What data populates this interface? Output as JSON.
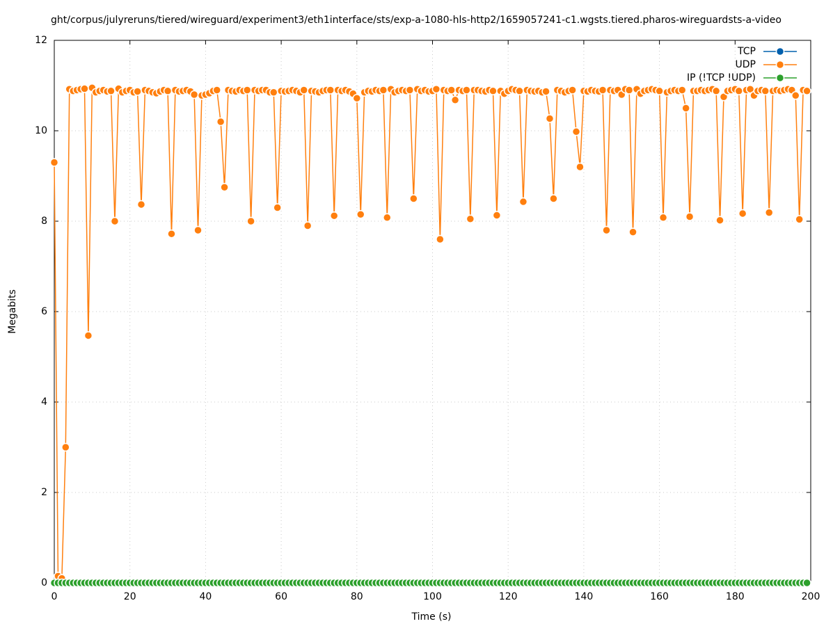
{
  "chart_data": {
    "type": "line",
    "title": "ght/corpus/julyreruns/tiered/wireguard/experiment3/eth1interface/sts/exp-a-1080-hls-http2/1659057241-c1.wgsts.tiered.pharos-wireguardsts-a-video",
    "x_label": "Time (s)",
    "y_label": "Megabits",
    "xlim": [
      0,
      200
    ],
    "ylim": [
      0,
      12
    ],
    "xticks": [
      0,
      20,
      40,
      60,
      80,
      100,
      120,
      140,
      160,
      180,
      200
    ],
    "yticks": [
      0,
      2,
      4,
      6,
      8,
      10,
      12
    ],
    "grid": true,
    "legend": "top-right",
    "x": [
      0,
      1,
      2,
      3,
      4,
      5,
      6,
      7,
      8,
      9,
      10,
      11,
      12,
      13,
      14,
      15,
      16,
      17,
      18,
      19,
      20,
      21,
      22,
      23,
      24,
      25,
      26,
      27,
      28,
      29,
      30,
      31,
      32,
      33,
      34,
      35,
      36,
      37,
      38,
      39,
      40,
      41,
      42,
      43,
      44,
      45,
      46,
      47,
      48,
      49,
      50,
      51,
      52,
      53,
      54,
      55,
      56,
      57,
      58,
      59,
      60,
      61,
      62,
      63,
      64,
      65,
      66,
      67,
      68,
      69,
      70,
      71,
      72,
      73,
      74,
      75,
      76,
      77,
      78,
      79,
      80,
      81,
      82,
      83,
      84,
      85,
      86,
      87,
      88,
      89,
      90,
      91,
      92,
      93,
      94,
      95,
      96,
      97,
      98,
      99,
      100,
      101,
      102,
      103,
      104,
      105,
      106,
      107,
      108,
      109,
      110,
      111,
      112,
      113,
      114,
      115,
      116,
      117,
      118,
      119,
      120,
      121,
      122,
      123,
      124,
      125,
      126,
      127,
      128,
      129,
      130,
      131,
      132,
      133,
      134,
      135,
      136,
      137,
      138,
      139,
      140,
      141,
      142,
      143,
      144,
      145,
      146,
      147,
      148,
      149,
      150,
      151,
      152,
      153,
      154,
      155,
      156,
      157,
      158,
      159,
      160,
      161,
      162,
      163,
      164,
      165,
      166,
      167,
      168,
      169,
      170,
      171,
      172,
      173,
      174,
      175,
      176,
      177,
      178,
      179,
      180,
      181,
      182,
      183,
      184,
      185,
      186,
      187,
      188,
      189,
      190,
      191,
      192,
      193,
      194,
      195,
      196,
      197,
      198,
      199
    ],
    "series": [
      {
        "name": "TCP",
        "color": "#0060ad",
        "values": [
          0,
          0,
          0,
          0,
          0,
          0,
          0,
          0,
          0,
          0,
          0,
          0,
          0,
          0,
          0,
          0,
          0,
          0,
          0,
          0,
          0,
          0,
          0,
          0,
          0,
          0,
          0,
          0,
          0,
          0,
          0,
          0,
          0,
          0,
          0,
          0,
          0,
          0,
          0,
          0,
          0,
          0,
          0,
          0,
          0,
          0,
          0,
          0,
          0,
          0,
          0,
          0,
          0,
          0,
          0,
          0,
          0,
          0,
          0,
          0,
          0,
          0,
          0,
          0,
          0,
          0,
          0,
          0,
          0,
          0,
          0,
          0,
          0,
          0,
          0,
          0,
          0,
          0,
          0,
          0,
          0,
          0,
          0,
          0,
          0,
          0,
          0,
          0,
          0,
          0,
          0,
          0,
          0,
          0,
          0,
          0,
          0,
          0,
          0,
          0,
          0,
          0,
          0,
          0,
          0,
          0,
          0,
          0,
          0,
          0,
          0,
          0,
          0,
          0,
          0,
          0,
          0,
          0,
          0,
          0,
          0,
          0,
          0,
          0,
          0,
          0,
          0,
          0,
          0,
          0,
          0,
          0,
          0,
          0,
          0,
          0,
          0,
          0,
          0,
          0,
          0,
          0,
          0,
          0,
          0,
          0,
          0,
          0,
          0,
          0,
          0,
          0,
          0,
          0,
          0,
          0,
          0,
          0,
          0,
          0,
          0,
          0,
          0,
          0,
          0,
          0,
          0,
          0,
          0,
          0,
          0,
          0,
          0,
          0,
          0,
          0,
          0,
          0,
          0,
          0,
          0,
          0,
          0,
          0,
          0,
          0,
          0,
          0,
          0,
          0,
          0,
          0,
          0,
          0,
          0,
          0,
          0,
          0,
          0,
          0
        ]
      },
      {
        "name": "UDP",
        "color": "#ff7f0e",
        "values": [
          9.3,
          0.15,
          0.1,
          3.0,
          10.92,
          10.88,
          10.9,
          10.92,
          10.93,
          5.47,
          10.95,
          10.85,
          10.88,
          10.9,
          10.87,
          10.88,
          8.0,
          10.93,
          10.85,
          10.88,
          10.9,
          10.85,
          10.87,
          8.37,
          10.9,
          10.88,
          10.85,
          10.83,
          10.87,
          10.9,
          10.88,
          7.72,
          10.9,
          10.87,
          10.88,
          10.9,
          10.87,
          10.8,
          7.8,
          10.78,
          10.8,
          10.83,
          10.88,
          10.9,
          10.2,
          8.75,
          10.9,
          10.88,
          10.87,
          10.9,
          10.88,
          10.9,
          8.0,
          10.9,
          10.88,
          10.9,
          10.9,
          10.85,
          10.85,
          8.3,
          10.88,
          10.87,
          10.88,
          10.9,
          10.88,
          10.85,
          10.9,
          7.9,
          10.88,
          10.87,
          10.85,
          10.88,
          10.9,
          10.9,
          8.12,
          10.9,
          10.88,
          10.9,
          10.87,
          10.82,
          10.72,
          8.15,
          10.85,
          10.88,
          10.87,
          10.9,
          10.88,
          10.9,
          8.08,
          10.92,
          10.85,
          10.88,
          10.9,
          10.88,
          10.9,
          8.5,
          10.92,
          10.88,
          10.9,
          10.87,
          10.88,
          10.92,
          7.6,
          10.9,
          10.88,
          10.9,
          10.68,
          10.9,
          10.88,
          10.9,
          8.05,
          10.9,
          10.9,
          10.88,
          10.87,
          10.9,
          10.88,
          8.13,
          10.88,
          10.82,
          10.88,
          10.92,
          10.9,
          10.88,
          8.43,
          10.9,
          10.88,
          10.87,
          10.88,
          10.85,
          10.87,
          10.27,
          8.5,
          10.9,
          10.88,
          10.85,
          10.88,
          10.9,
          9.98,
          9.2,
          10.88,
          10.87,
          10.9,
          10.88,
          10.87,
          10.9,
          7.8,
          10.9,
          10.88,
          10.9,
          10.8,
          10.92,
          10.9,
          7.76,
          10.92,
          10.82,
          10.88,
          10.9,
          10.92,
          10.9,
          10.88,
          8.08,
          10.85,
          10.88,
          10.9,
          10.88,
          10.9,
          10.5,
          8.1,
          10.88,
          10.88,
          10.9,
          10.88,
          10.9,
          10.92,
          10.88,
          8.02,
          10.75,
          10.88,
          10.9,
          10.92,
          10.88,
          8.17,
          10.9,
          10.92,
          10.78,
          10.88,
          10.9,
          10.88,
          8.19,
          10.88,
          10.9,
          10.88,
          10.9,
          10.92,
          10.9,
          10.78,
          8.04,
          10.9,
          10.88
        ]
      },
      {
        "name": "IP (!TCP !UDP)",
        "color": "#2ca02c",
        "values": [
          0,
          0,
          0,
          0,
          0,
          0,
          0,
          0,
          0,
          0,
          0,
          0,
          0,
          0,
          0,
          0,
          0,
          0,
          0,
          0,
          0,
          0,
          0,
          0,
          0,
          0,
          0,
          0,
          0,
          0,
          0,
          0,
          0,
          0,
          0,
          0,
          0,
          0,
          0,
          0,
          0,
          0,
          0,
          0,
          0,
          0,
          0,
          0,
          0,
          0,
          0,
          0,
          0,
          0,
          0,
          0,
          0,
          0,
          0,
          0,
          0,
          0,
          0,
          0,
          0,
          0,
          0,
          0,
          0,
          0,
          0,
          0,
          0,
          0,
          0,
          0,
          0,
          0,
          0,
          0,
          0,
          0,
          0,
          0,
          0,
          0,
          0,
          0,
          0,
          0,
          0,
          0,
          0,
          0,
          0,
          0,
          0,
          0,
          0,
          0,
          0,
          0,
          0,
          0,
          0,
          0,
          0,
          0,
          0,
          0,
          0,
          0,
          0,
          0,
          0,
          0,
          0,
          0,
          0,
          0,
          0,
          0,
          0,
          0,
          0,
          0,
          0,
          0,
          0,
          0,
          0,
          0,
          0,
          0,
          0,
          0,
          0,
          0,
          0,
          0,
          0,
          0,
          0,
          0,
          0,
          0,
          0,
          0,
          0,
          0,
          0,
          0,
          0,
          0,
          0,
          0,
          0,
          0,
          0,
          0,
          0,
          0,
          0,
          0,
          0,
          0,
          0,
          0,
          0,
          0,
          0,
          0,
          0,
          0,
          0,
          0,
          0,
          0,
          0,
          0,
          0,
          0,
          0,
          0,
          0,
          0,
          0,
          0,
          0,
          0,
          0,
          0,
          0,
          0,
          0,
          0,
          0,
          0,
          0,
          0
        ]
      }
    ]
  }
}
